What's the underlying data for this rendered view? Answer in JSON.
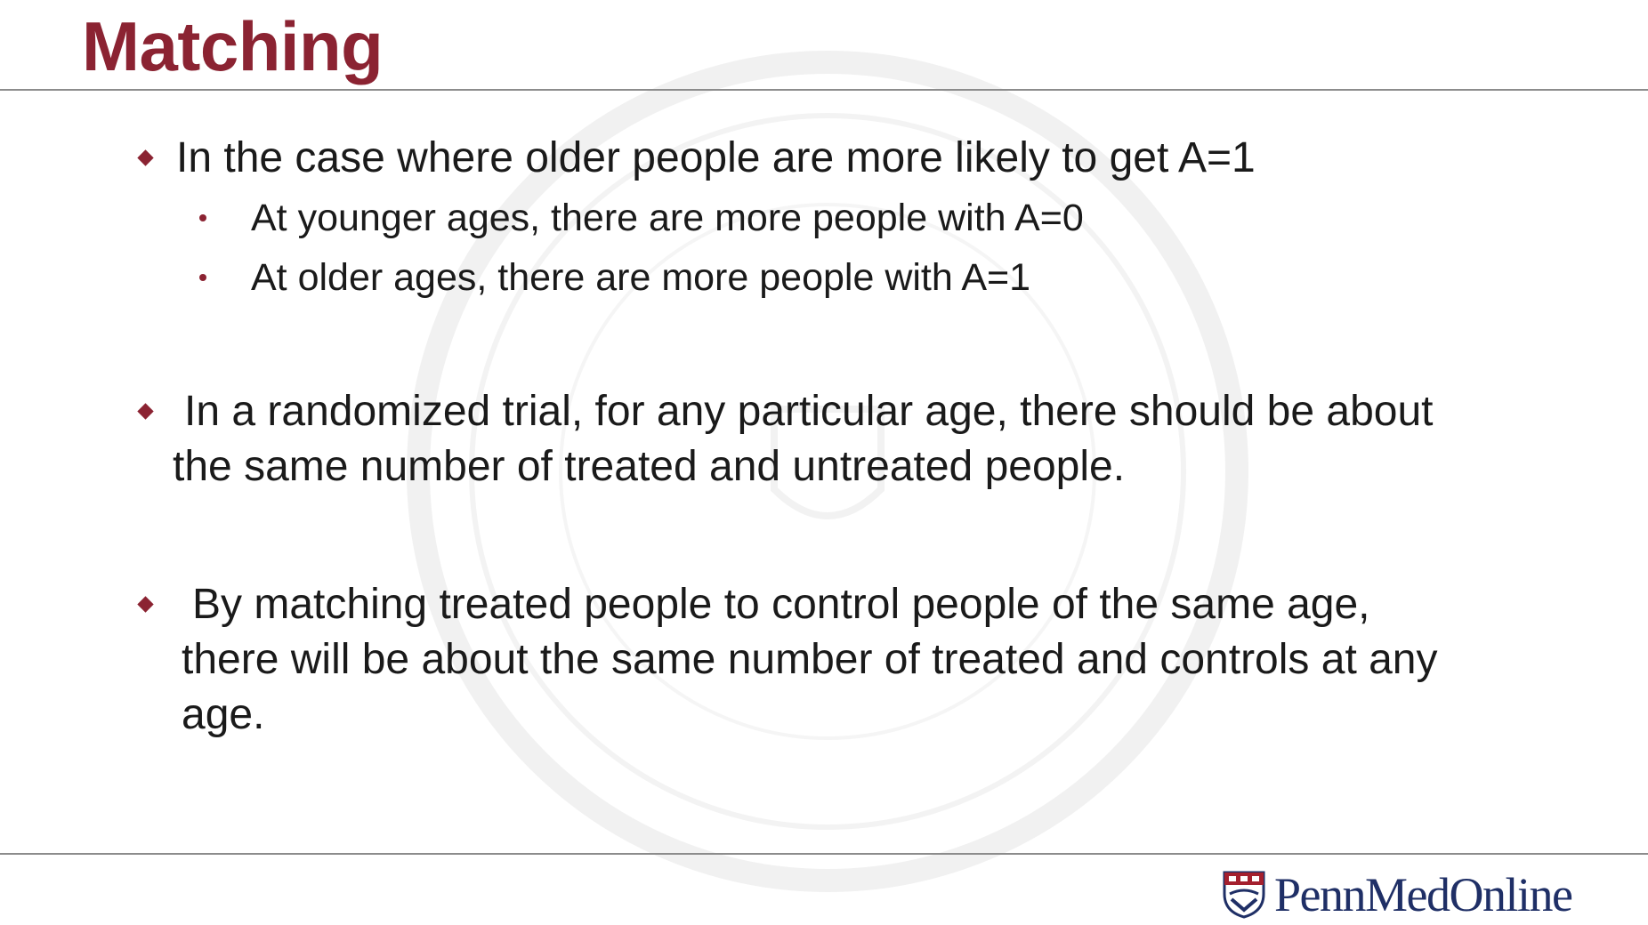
{
  "slide": {
    "title": "Matching",
    "bullets": [
      {
        "text": "In the case where older people are more likely to get A=1",
        "sub_bullets": [
          "At younger ages, there are more people with A=0",
          "At older ages, there are more people with A=1"
        ]
      },
      {
        "lines": [
          "In a randomized trial, for any particular age, there should be about",
          "the same number of treated and untreated people."
        ]
      },
      {
        "lines": [
          "By matching treated people to control people of the same age,",
          "there will be about the same number of treated and controls at any",
          "age."
        ]
      }
    ]
  },
  "footer": {
    "logo_text": "PennMedOnline",
    "logo_icon": "penn-shield-icon"
  },
  "colors": {
    "title": "#8b2332",
    "bullet_marker": "#8b2332",
    "logo": "#1f2f66",
    "rule": "#8c8c8c"
  }
}
